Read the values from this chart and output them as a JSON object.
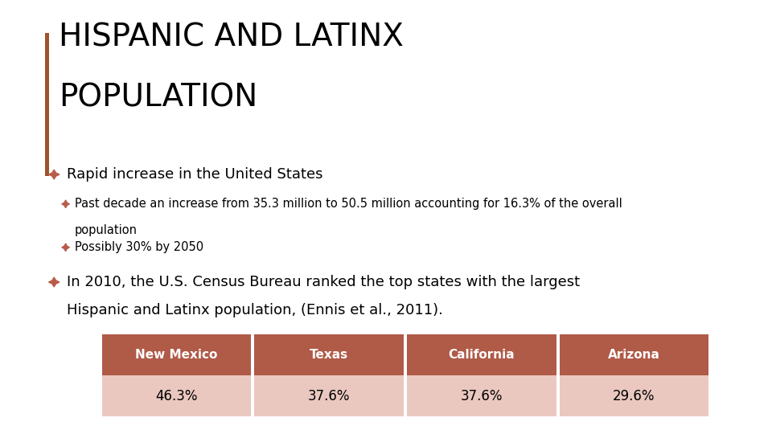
{
  "title_line1": "HISPANIC AND LATINX",
  "title_line2": "POPULATION",
  "accent_bar_color": "#A0522D",
  "title_color": "#000000",
  "text_color": "#000000",
  "bullet_diamond_color": "#B85C4A",
  "bullet1": "Rapid increase in the United States",
  "bullet2a": "Past decade an increase from 35.3 million to 50.5 million accounting for 16.3% of the overall",
  "bullet2b": "population",
  "bullet3": "Possibly 30% by 2050",
  "bullet4_line1": "In 2010, the U.S. Census Bureau ranked the top states with the largest",
  "bullet4_line2": "Hispanic and Latinx population, (Ennis et al., 2011).",
  "table_headers": [
    "New Mexico",
    "Texas",
    "California",
    "Arizona"
  ],
  "table_values": [
    "46.3%",
    "37.6%",
    "37.6%",
    "29.6%"
  ],
  "table_header_bg": "#B05A48",
  "table_value_bg": "#EAC8C0",
  "table_header_color": "#FFFFFF",
  "table_value_color": "#000000",
  "background_color": "#FFFFFF",
  "title_fontsize": 28,
  "bullet1_fontsize": 13,
  "bullet2_fontsize": 10.5,
  "bullet4_fontsize": 13,
  "table_header_fontsize": 11,
  "table_value_fontsize": 12
}
